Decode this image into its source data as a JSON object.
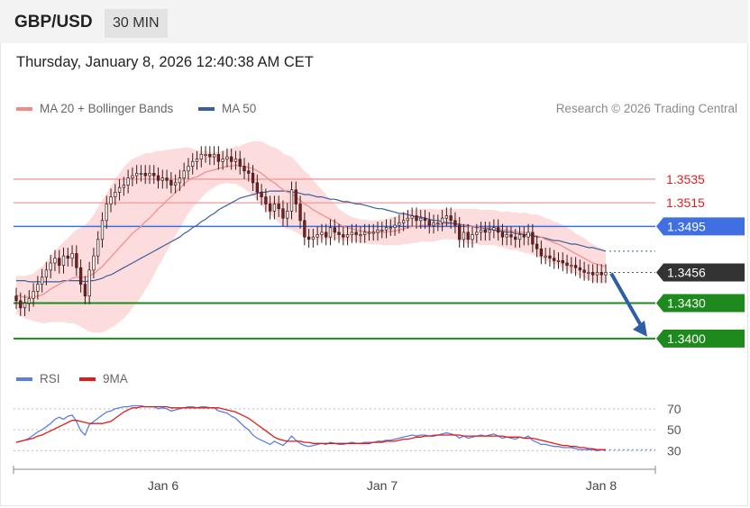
{
  "header": {
    "symbol": "GBP/USD",
    "timeframe": "30 MIN"
  },
  "timestamp": "Thursday, January 8, 2026 12:40:38 AM CET",
  "legend": {
    "ma20_label": "MA 20 + Bollinger Bands",
    "ma50_label": "MA 50",
    "credit": "Research © 2026 Trading Central"
  },
  "colors": {
    "ma20": "#f28a8a",
    "ma50": "#3a5fa0",
    "band_fill": "#fbd6d6",
    "resistance": "#f29a9a",
    "pivot": "#3f6fe0",
    "support": "#1e8a1e",
    "rsi": "#5b7fe0",
    "rsi_ma": "#e11b1b",
    "arrow": "#2d5fa8",
    "candle_up": "#ffffff",
    "candle_down": "#7a1e1e"
  },
  "chart_data": [
    {
      "type": "candlestick",
      "title": "GBP/USD",
      "x_ticks": [
        "Jan 6",
        "Jan 7",
        "Jan 8"
      ],
      "ylim": [
        1.3393,
        1.358
      ],
      "levels": [
        {
          "label": "1.3535",
          "value": 1.3535,
          "kind": "resistance"
        },
        {
          "label": "1.3515",
          "value": 1.3515,
          "kind": "resistance"
        },
        {
          "label": "1.3495",
          "value": 1.3495,
          "kind": "pivot"
        },
        {
          "label": "1.3456",
          "value": 1.3456,
          "kind": "last"
        },
        {
          "label": "1.3430",
          "value": 1.343,
          "kind": "support"
        },
        {
          "label": "1.3400",
          "value": 1.34,
          "kind": "support"
        }
      ],
      "close": [
        1.3432,
        1.3426,
        1.343,
        1.3434,
        1.344,
        1.3446,
        1.3452,
        1.3458,
        1.3464,
        1.3468,
        1.3462,
        1.347,
        1.3468,
        1.3472,
        1.346,
        1.3446,
        1.3436,
        1.3458,
        1.347,
        1.3484,
        1.35,
        1.3514,
        1.352,
        1.3524,
        1.3528,
        1.353,
        1.3536,
        1.3538,
        1.354,
        1.354,
        1.3538,
        1.354,
        1.3538,
        1.3534,
        1.3536,
        1.3534,
        1.353,
        1.3532,
        1.3536,
        1.3542,
        1.3546,
        1.355,
        1.3552,
        1.3556,
        1.3556,
        1.3554,
        1.3556,
        1.355,
        1.3552,
        1.3554,
        1.355,
        1.3552,
        1.3546,
        1.3542,
        1.354,
        1.3532,
        1.3524,
        1.352,
        1.3514,
        1.3508,
        1.3514,
        1.351,
        1.3502,
        1.3508,
        1.3526,
        1.3514,
        1.35,
        1.3486,
        1.3484,
        1.3486,
        1.3488,
        1.349,
        1.3486,
        1.3494,
        1.349,
        1.3488,
        1.3486,
        1.3488,
        1.349,
        1.3488,
        1.3488,
        1.349,
        1.349,
        1.349,
        1.3492,
        1.3492,
        1.3494,
        1.3494,
        1.3496,
        1.3498,
        1.35,
        1.3502,
        1.3504,
        1.35,
        1.3502,
        1.35,
        1.3496,
        1.3498,
        1.3498,
        1.3502,
        1.3504,
        1.35,
        1.3496,
        1.3484,
        1.349,
        1.3484,
        1.3488,
        1.349,
        1.3492,
        1.349,
        1.3492,
        1.3494,
        1.349,
        1.3486,
        1.3488,
        1.3486,
        1.3484,
        1.3488,
        1.3486,
        1.349,
        1.348,
        1.3476,
        1.347,
        1.347,
        1.3468,
        1.3466,
        1.3466,
        1.3464,
        1.3462,
        1.3462,
        1.346,
        1.3458,
        1.3456,
        1.3456,
        1.3454,
        1.3456,
        1.3454,
        1.3456
      ],
      "series": [
        {
          "name": "MA 20 + Bollinger Bands",
          "values": [
            1.3437,
            1.3436,
            1.3435,
            1.3435,
            1.3435,
            1.3436,
            1.3437,
            1.3439,
            1.3442,
            1.3444,
            1.3446,
            1.3448,
            1.3449,
            1.3451,
            1.3452,
            1.3452,
            1.3452,
            1.3453,
            1.3455,
            1.3458,
            1.3461,
            1.3465,
            1.3469,
            1.3473,
            1.3477,
            1.3481,
            1.3485,
            1.3489,
            1.3492,
            1.3495,
            1.3499,
            1.3502,
            1.3506,
            1.351,
            1.3513,
            1.3517,
            1.352,
            1.3524,
            1.3527,
            1.3531,
            1.3534,
            1.3536,
            1.3537,
            1.3539,
            1.3541,
            1.3542,
            1.3543,
            1.3544,
            1.3545,
            1.3546,
            1.3546,
            1.3547,
            1.3546,
            1.3546,
            1.3545,
            1.3544,
            1.3542,
            1.354,
            1.3537,
            1.3534,
            1.3532,
            1.3529,
            1.3526,
            1.3524,
            1.3523,
            1.352,
            1.3517,
            1.3514,
            1.3512,
            1.3509,
            1.3507,
            1.3505,
            1.3503,
            1.3501,
            1.3499,
            1.3497,
            1.3495,
            1.3494,
            1.3493,
            1.3492,
            1.3491,
            1.3491,
            1.349,
            1.349,
            1.349,
            1.349,
            1.349,
            1.3491,
            1.3491,
            1.3492,
            1.3493,
            1.3494,
            1.3495,
            1.3495,
            1.3496,
            1.3496,
            1.3496,
            1.3496,
            1.3496,
            1.3497,
            1.3497,
            1.3497,
            1.3497,
            1.3496,
            1.3496,
            1.3495,
            1.3495,
            1.3495,
            1.3494,
            1.3494,
            1.3494,
            1.3494,
            1.3493,
            1.3492,
            1.3492,
            1.3491,
            1.3491,
            1.349,
            1.349,
            1.3489,
            1.3488,
            1.3487,
            1.3486,
            1.3484,
            1.3483,
            1.3481,
            1.348,
            1.3478,
            1.3476,
            1.3474,
            1.3472,
            1.347,
            1.3468,
            1.3466,
            1.3464,
            1.3463,
            1.3462,
            1.3461
          ]
        },
        {
          "name": "MA 50",
          "values": [
            1.3449,
            1.3449,
            1.3449,
            1.3448,
            1.3448,
            1.3448,
            1.3448,
            1.3448,
            1.3448,
            1.3448,
            1.3448,
            1.3449,
            1.3449,
            1.3449,
            1.3449,
            1.3449,
            1.3448,
            1.3449,
            1.3449,
            1.345,
            1.3451,
            1.3453,
            1.3454,
            1.3456,
            1.3458,
            1.346,
            1.3462,
            1.3464,
            1.3466,
            1.3468,
            1.347,
            1.3472,
            1.3474,
            1.3476,
            1.3478,
            1.348,
            1.3482,
            1.3484,
            1.3486,
            1.3489,
            1.3491,
            1.3494,
            1.3496,
            1.3499,
            1.3501,
            1.3504,
            1.3506,
            1.3509,
            1.3511,
            1.3513,
            1.3515,
            1.3517,
            1.3519,
            1.352,
            1.3521,
            1.3522,
            1.3523,
            1.3524,
            1.3524,
            1.3525,
            1.3525,
            1.3525,
            1.3525,
            1.3525,
            1.3524,
            1.3524,
            1.3523,
            1.3522,
            1.3522,
            1.3521,
            1.352,
            1.352,
            1.3519,
            1.3518,
            1.3518,
            1.3517,
            1.3516,
            1.3516,
            1.3515,
            1.3514,
            1.3514,
            1.3513,
            1.3512,
            1.3511,
            1.351,
            1.351,
            1.3509,
            1.3508,
            1.3507,
            1.3506,
            1.3506,
            1.3505,
            1.3504,
            1.3503,
            1.3503,
            1.3502,
            1.3501,
            1.35,
            1.35,
            1.3499,
            1.3498,
            1.3498,
            1.3497,
            1.3497,
            1.3496,
            1.3496,
            1.3495,
            1.3494,
            1.3494,
            1.3493,
            1.3493,
            1.3492,
            1.3491,
            1.3491,
            1.349,
            1.349,
            1.3489,
            1.3489,
            1.3488,
            1.3488,
            1.3487,
            1.3486,
            1.3486,
            1.3485,
            1.3484,
            1.3483,
            1.3483,
            1.3482,
            1.3481,
            1.348,
            1.348,
            1.3479,
            1.3478,
            1.3477,
            1.3477,
            1.3476,
            1.3475,
            1.3474
          ]
        }
      ],
      "band_width": [
        0.0016,
        0.0017,
        0.0018,
        0.0019,
        0.002,
        0.0022,
        0.0024,
        0.0026,
        0.0028,
        0.003,
        0.0032,
        0.0034,
        0.0036,
        0.0038,
        0.004,
        0.0042,
        0.0044,
        0.0047,
        0.005,
        0.0053,
        0.0056,
        0.0058,
        0.006,
        0.0062,
        0.0063,
        0.0064,
        0.0064,
        0.0063,
        0.0062,
        0.006,
        0.0058,
        0.0055,
        0.0052,
        0.0049,
        0.0046,
        0.0043,
        0.004,
        0.0037,
        0.0034,
        0.0031,
        0.0028,
        0.0025,
        0.0022,
        0.002,
        0.0018,
        0.0016,
        0.0015,
        0.0014,
        0.0014,
        0.0014,
        0.0015,
        0.0016,
        0.0017,
        0.0019,
        0.0021,
        0.0023,
        0.0025,
        0.0027,
        0.0028,
        0.0029,
        0.003,
        0.0031,
        0.0031,
        0.0031,
        0.0031,
        0.003,
        0.0029,
        0.0028,
        0.0027,
        0.0025,
        0.0023,
        0.0021,
        0.0019,
        0.0017,
        0.0015,
        0.0013,
        0.0012,
        0.0011,
        0.001,
        0.001,
        0.001,
        0.001,
        0.001,
        0.001,
        0.001,
        0.0011,
        0.0011,
        0.0012,
        0.0012,
        0.0013,
        0.0013,
        0.0014,
        0.0014,
        0.0014,
        0.0014,
        0.0014,
        0.0014,
        0.0014,
        0.0013,
        0.0013,
        0.0013,
        0.0013,
        0.0013,
        0.0014,
        0.0014,
        0.0015,
        0.0015,
        0.0015,
        0.0015,
        0.0015,
        0.0015,
        0.0015,
        0.0015,
        0.0015,
        0.0016,
        0.0016,
        0.0016,
        0.0016,
        0.0017,
        0.0017,
        0.0017,
        0.0018,
        0.0018,
        0.0018,
        0.0018,
        0.0018,
        0.0018,
        0.0018,
        0.0018,
        0.0018,
        0.0017,
        0.0017,
        0.0017,
        0.0016,
        0.0016,
        0.0015,
        0.0015,
        0.0014,
        0.0014,
        0.0014
      ]
    },
    {
      "type": "line",
      "title": "RSI",
      "ylim": [
        20,
        82
      ],
      "y_ticks": [
        70,
        50,
        30
      ],
      "series": [
        {
          "name": "RSI",
          "values": [
            38,
            39,
            40,
            42,
            45,
            48,
            50,
            53,
            56,
            60,
            62,
            60,
            63,
            64,
            58,
            49,
            45,
            55,
            58,
            61,
            64,
            67,
            68,
            70,
            71,
            72,
            72,
            73,
            73,
            73,
            72,
            72,
            72,
            70,
            71,
            70,
            68,
            69,
            70,
            71,
            72,
            72,
            71,
            72,
            72,
            71,
            71,
            68,
            67,
            66,
            63,
            61,
            57,
            53,
            50,
            45,
            42,
            40,
            38,
            36,
            39,
            37,
            35,
            39,
            44,
            40,
            37,
            35,
            34,
            35,
            36,
            37,
            36,
            38,
            37,
            36,
            36,
            37,
            38,
            37,
            37,
            38,
            38,
            38,
            39,
            39,
            40,
            40,
            41,
            42,
            43,
            44,
            45,
            44,
            45,
            45,
            44,
            45,
            45,
            46,
            47,
            46,
            45,
            42,
            44,
            42,
            43,
            44,
            45,
            44,
            45,
            46,
            44,
            42,
            43,
            42,
            41,
            43,
            42,
            44,
            40,
            38,
            36,
            36,
            35,
            34,
            34,
            33,
            33,
            33,
            32,
            31,
            31,
            31,
            31,
            30,
            31,
            30
          ]
        },
        {
          "name": "9MA",
          "values": [
            38,
            39,
            40,
            41,
            42,
            44,
            45,
            47,
            49,
            51,
            53,
            55,
            57,
            59,
            59,
            58,
            57,
            56,
            56,
            56,
            56,
            57,
            58,
            61,
            64,
            67,
            69,
            71,
            71,
            72,
            72,
            72,
            72,
            72,
            72,
            72,
            71,
            71,
            71,
            71,
            71,
            71,
            71,
            71,
            71,
            71,
            71,
            71,
            70,
            69,
            68,
            67,
            65,
            63,
            61,
            58,
            55,
            52,
            49,
            46,
            43,
            41,
            40,
            39,
            39,
            39,
            39,
            38,
            38,
            37,
            37,
            37,
            37,
            37,
            37,
            37,
            37,
            37,
            37,
            37,
            37,
            37,
            37,
            38,
            38,
            38,
            39,
            39,
            39,
            40,
            41,
            41,
            42,
            43,
            43,
            44,
            44,
            44,
            45,
            45,
            45,
            45,
            45,
            45,
            44,
            44,
            44,
            44,
            44,
            44,
            44,
            44,
            44,
            44,
            43,
            43,
            43,
            43,
            42,
            42,
            42,
            41,
            40,
            39,
            38,
            37,
            36,
            35,
            35,
            34,
            34,
            33,
            33,
            32,
            32,
            31,
            31,
            31
          ]
        }
      ]
    }
  ]
}
